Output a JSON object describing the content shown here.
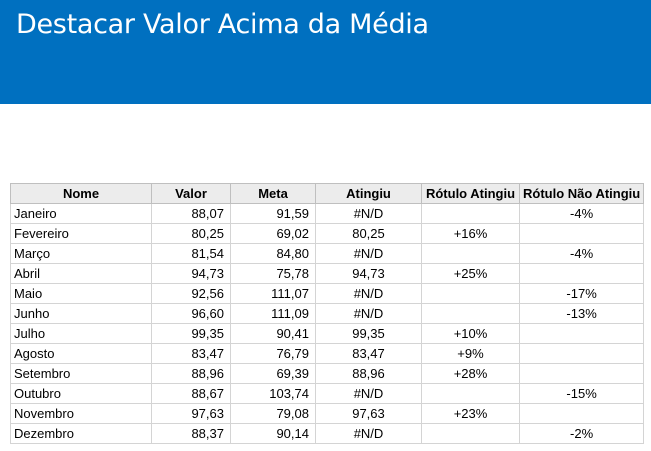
{
  "title": "Destacar Valor Acima da Média",
  "colors": {
    "banner": "#0070c0",
    "header_bg": "#ececec",
    "grid": "#d4d4d4"
  },
  "table": {
    "headers": [
      "Nome",
      "Valor",
      "Meta",
      "Atingiu",
      "Rótulo Atingiu",
      "Rótulo Não Atingiu"
    ],
    "rows": [
      [
        "Janeiro",
        "88,07",
        "91,59",
        "#N/D",
        "",
        "-4%"
      ],
      [
        "Fevereiro",
        "80,25",
        "69,02",
        "80,25",
        "+16%",
        ""
      ],
      [
        "Março",
        "81,54",
        "84,80",
        "#N/D",
        "",
        "-4%"
      ],
      [
        "Abril",
        "94,73",
        "75,78",
        "94,73",
        "+25%",
        ""
      ],
      [
        "Maio",
        "92,56",
        "111,07",
        "#N/D",
        "",
        "-17%"
      ],
      [
        "Junho",
        "96,60",
        "111,09",
        "#N/D",
        "",
        "-13%"
      ],
      [
        "Julho",
        "99,35",
        "90,41",
        "99,35",
        "+10%",
        ""
      ],
      [
        "Agosto",
        "83,47",
        "76,79",
        "83,47",
        "+9%",
        ""
      ],
      [
        "Setembro",
        "88,96",
        "69,39",
        "88,96",
        "+28%",
        ""
      ],
      [
        "Outubro",
        "88,67",
        "103,74",
        "#N/D",
        "",
        "-15%"
      ],
      [
        "Novembro",
        "97,63",
        "79,08",
        "97,63",
        "+23%",
        ""
      ],
      [
        "Dezembro",
        "88,37",
        "90,14",
        "#N/D",
        "",
        "-2%"
      ]
    ]
  }
}
